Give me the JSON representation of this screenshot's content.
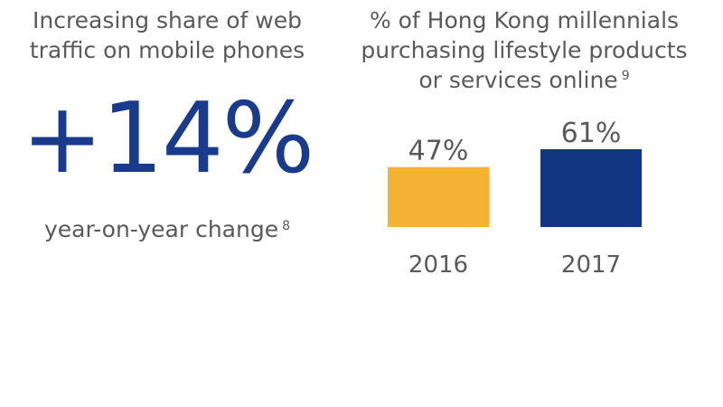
{
  "left": {
    "title_line1": "Increasing share of web",
    "title_line2": "traffic on mobile phones",
    "stat": "+14%",
    "caption": "year-on-year change",
    "caption_footnote": "8"
  },
  "right": {
    "title_line1": "% of Hong Kong millennials",
    "title_line2": "purchasing lifestyle products",
    "title_line3": "or services online",
    "title_footnote": "9"
  },
  "chart_data": {
    "type": "bar",
    "categories": [
      "2016",
      "2017"
    ],
    "values": [
      47,
      61
    ],
    "value_labels": [
      "47%",
      "61%"
    ],
    "colors": [
      "#f5b335",
      "#12357f"
    ],
    "ylim": [
      0,
      100
    ],
    "grid": false
  }
}
